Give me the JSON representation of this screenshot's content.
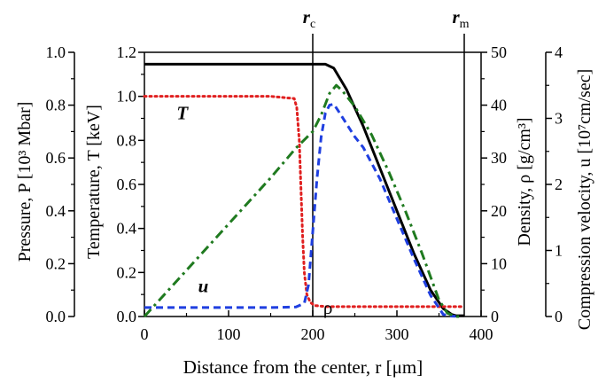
{
  "chart_data": {
    "type": "line",
    "xlabel": "Distance from the center, r  [μm]",
    "xlim": [
      0,
      400
    ],
    "xticks": [
      0,
      100,
      200,
      300,
      400
    ],
    "axes": [
      {
        "id": "P",
        "label": "Pressure, P  [10³ Mbar]",
        "ylim": [
          0,
          1.0
        ],
        "ticks": [
          "0.0",
          "0.2",
          "0.4",
          "0.6",
          "0.8",
          "1.0"
        ],
        "tick_values": [
          0,
          0.2,
          0.4,
          0.6,
          0.8,
          1.0
        ]
      },
      {
        "id": "T",
        "label": "Temperature, T  [keV]",
        "ylim": [
          0,
          1.2
        ],
        "ticks": [
          "0.0",
          "0.2",
          "0.4",
          "0.6",
          "0.8",
          "1.0",
          "1.2"
        ],
        "tick_values": [
          0,
          0.2,
          0.4,
          0.6,
          0.8,
          1.0,
          1.2
        ]
      },
      {
        "id": "rho",
        "label": "Density, ρ  [g/cm³]",
        "ylim": [
          0,
          50
        ],
        "ticks": [
          "0",
          "10",
          "20",
          "30",
          "40",
          "50"
        ],
        "tick_values": [
          0,
          10,
          20,
          30,
          40,
          50
        ]
      },
      {
        "id": "u",
        "label": "Compression velocity, u  [10⁷cm/sec]",
        "ylim": [
          0,
          4
        ],
        "ticks": [
          "0",
          "1",
          "2",
          "3",
          "4"
        ],
        "tick_values": [
          0,
          1,
          2,
          3,
          4
        ]
      }
    ],
    "series": [
      {
        "name": "P",
        "axis": "P",
        "color": "#000000",
        "style": "solid",
        "label_pos": [
          45,
          1.21
        ],
        "x": [
          0,
          50,
          100,
          150,
          200,
          215,
          225,
          240,
          260,
          280,
          300,
          320,
          340,
          355,
          365,
          370,
          380
        ],
        "y": [
          0.955,
          0.955,
          0.955,
          0.955,
          0.955,
          0.955,
          0.94,
          0.86,
          0.72,
          0.56,
          0.4,
          0.24,
          0.1,
          0.03,
          0.008,
          0.003,
          0.003
        ]
      },
      {
        "name": "T",
        "axis": "T",
        "color": "#e02020",
        "style": "dotted",
        "label_pos": [
          45,
          0.895
        ],
        "x": [
          0,
          50,
          100,
          150,
          178,
          181,
          184,
          186,
          188,
          190,
          193,
          197,
          202,
          215,
          250,
          300,
          340,
          380
        ],
        "y": [
          1.0,
          1.0,
          1.0,
          1.0,
          0.99,
          0.95,
          0.8,
          0.58,
          0.36,
          0.2,
          0.1,
          0.065,
          0.05,
          0.045,
          0.045,
          0.045,
          0.045,
          0.045
        ]
      },
      {
        "name": "ρ",
        "axis": "rho",
        "color": "#1f3fe0",
        "style": "dashed",
        "label_pos": [
          218,
          0.54
        ],
        "x": [
          0,
          50,
          100,
          150,
          180,
          190,
          195,
          200,
          205,
          210,
          215,
          220,
          225,
          230,
          240,
          250,
          260,
          280,
          300,
          320,
          340,
          355,
          362,
          370
        ],
        "y": [
          1.7,
          1.7,
          1.7,
          1.7,
          1.8,
          2.5,
          6,
          16,
          26,
          34,
          38.5,
          40,
          40.2,
          39,
          36.5,
          34,
          32,
          26,
          18.5,
          11,
          4,
          0.4,
          0.1,
          0.05
        ]
      },
      {
        "name": "u",
        "axis": "u",
        "color": "#1f7a1f",
        "style": "dashdot",
        "label_pos": [
          70,
          0.37
        ],
        "x": [
          0,
          50,
          100,
          150,
          180,
          200,
          210,
          220,
          228,
          235,
          250,
          270,
          290,
          310,
          330,
          350,
          360,
          370,
          375
        ],
        "y": [
          0.0,
          0.7,
          1.4,
          2.1,
          2.55,
          2.8,
          3.05,
          3.38,
          3.5,
          3.42,
          3.18,
          2.75,
          2.2,
          1.6,
          0.95,
          0.25,
          0.05,
          0.0,
          0.0
        ]
      }
    ],
    "vlines": [
      {
        "label": "r",
        "subscript": "c",
        "x": 200
      },
      {
        "label": "r",
        "subscript": "m",
        "x": 380
      }
    ]
  }
}
